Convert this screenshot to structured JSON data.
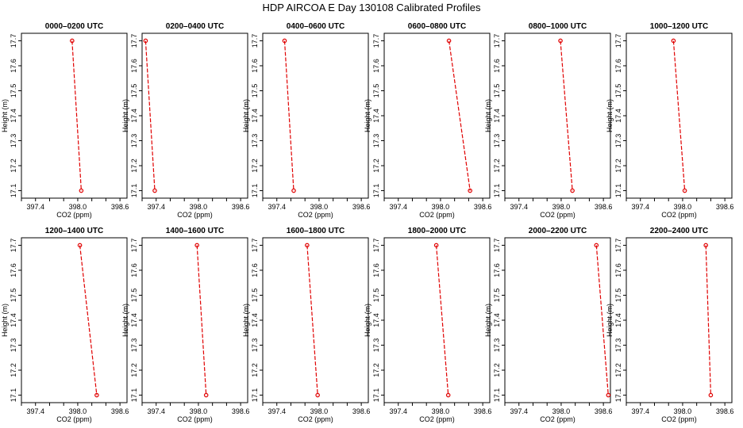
{
  "title": "HDP AIRCOA E  Day 130108  Calibrated Profiles",
  "chart_data": [
    {
      "type": "line",
      "title": "0000–0200 UTC",
      "xlabel": "CO2 (ppm)",
      "ylabel": "Height (m)",
      "xlim": [
        397.2,
        398.7
      ],
      "ylim": [
        17.07,
        17.73
      ],
      "xticks": [
        "397.4",
        "398.0",
        "398.6"
      ],
      "yticks": [
        "17.1",
        "17.2",
        "17.3",
        "17.4",
        "17.5",
        "17.6",
        "17.7"
      ],
      "x": [
        397.92,
        398.05
      ],
      "y": [
        17.7,
        17.1
      ]
    },
    {
      "type": "line",
      "title": "0200–0400 UTC",
      "xlabel": "CO2 (ppm)",
      "ylabel": "Height (m)",
      "xlim": [
        397.2,
        398.7
      ],
      "ylim": [
        17.07,
        17.73
      ],
      "xticks": [
        "397.4",
        "398.0",
        "398.6"
      ],
      "yticks": [
        "17.1",
        "17.2",
        "17.3",
        "17.4",
        "17.5",
        "17.6",
        "17.7"
      ],
      "x": [
        397.25,
        397.38
      ],
      "y": [
        17.7,
        17.1
      ]
    },
    {
      "type": "line",
      "title": "0400–0600 UTC",
      "xlabel": "CO2 (ppm)",
      "ylabel": "Height (m)",
      "xlim": [
        397.2,
        398.7
      ],
      "ylim": [
        17.07,
        17.73
      ],
      "xticks": [
        "397.4",
        "398.0",
        "398.6"
      ],
      "yticks": [
        "17.1",
        "17.2",
        "17.3",
        "17.4",
        "17.5",
        "17.6",
        "17.7"
      ],
      "x": [
        397.51,
        397.64
      ],
      "y": [
        17.7,
        17.1
      ]
    },
    {
      "type": "line",
      "title": "0600–0800 UTC",
      "xlabel": "CO2 (ppm)",
      "ylabel": "Height (m)",
      "xlim": [
        397.2,
        398.7
      ],
      "ylim": [
        17.07,
        17.73
      ],
      "xticks": [
        "397.4",
        "398.0",
        "398.6"
      ],
      "yticks": [
        "17.1",
        "17.2",
        "17.3",
        "17.4",
        "17.5",
        "17.6",
        "17.7"
      ],
      "x": [
        398.12,
        398.42
      ],
      "y": [
        17.7,
        17.1
      ]
    },
    {
      "type": "line",
      "title": "0800–1000 UTC",
      "xlabel": "CO2 (ppm)",
      "ylabel": "Height (m)",
      "xlim": [
        397.2,
        398.7
      ],
      "ylim": [
        17.07,
        17.73
      ],
      "xticks": [
        "397.4",
        "398.0",
        "398.6"
      ],
      "yticks": [
        "17.1",
        "17.2",
        "17.3",
        "17.4",
        "17.5",
        "17.6",
        "17.7"
      ],
      "x": [
        397.99,
        398.16
      ],
      "y": [
        17.7,
        17.1
      ]
    },
    {
      "type": "line",
      "title": "1000–1200 UTC",
      "xlabel": "CO2 (ppm)",
      "ylabel": "Height (m)",
      "xlim": [
        397.2,
        398.7
      ],
      "ylim": [
        17.07,
        17.73
      ],
      "xticks": [
        "397.4",
        "398.0",
        "398.6"
      ],
      "yticks": [
        "17.1",
        "17.2",
        "17.3",
        "17.4",
        "17.5",
        "17.6",
        "17.7"
      ],
      "x": [
        397.87,
        398.03
      ],
      "y": [
        17.7,
        17.1
      ]
    },
    {
      "type": "line",
      "title": "1200–1400 UTC",
      "xlabel": "CO2 (ppm)",
      "ylabel": "Height (m)",
      "xlim": [
        397.2,
        398.7
      ],
      "ylim": [
        17.07,
        17.73
      ],
      "xticks": [
        "397.4",
        "398.0",
        "398.6"
      ],
      "yticks": [
        "17.1",
        "17.2",
        "17.3",
        "17.4",
        "17.5",
        "17.6",
        "17.7"
      ],
      "x": [
        398.03,
        398.27
      ],
      "y": [
        17.7,
        17.1
      ]
    },
    {
      "type": "line",
      "title": "1400–1600 UTC",
      "xlabel": "CO2 (ppm)",
      "ylabel": "Height (m)",
      "xlim": [
        397.2,
        398.7
      ],
      "ylim": [
        17.07,
        17.73
      ],
      "xticks": [
        "397.4",
        "398.0",
        "398.6"
      ],
      "yticks": [
        "17.1",
        "17.2",
        "17.3",
        "17.4",
        "17.5",
        "17.6",
        "17.7"
      ],
      "x": [
        397.98,
        398.11
      ],
      "y": [
        17.7,
        17.1
      ]
    },
    {
      "type": "line",
      "title": "1600–1800 UTC",
      "xlabel": "CO2 (ppm)",
      "ylabel": "Height (m)",
      "xlim": [
        397.2,
        398.7
      ],
      "ylim": [
        17.07,
        17.73
      ],
      "xticks": [
        "397.4",
        "398.0",
        "398.6"
      ],
      "yticks": [
        "17.1",
        "17.2",
        "17.3",
        "17.4",
        "17.5",
        "17.6",
        "17.7"
      ],
      "x": [
        397.83,
        397.98
      ],
      "y": [
        17.7,
        17.1
      ]
    },
    {
      "type": "line",
      "title": "1800–2000 UTC",
      "xlabel": "CO2 (ppm)",
      "ylabel": "Height (m)",
      "xlim": [
        397.2,
        398.7
      ],
      "ylim": [
        17.07,
        17.73
      ],
      "xticks": [
        "397.4",
        "398.0",
        "398.6"
      ],
      "yticks": [
        "17.1",
        "17.2",
        "17.3",
        "17.4",
        "17.5",
        "17.6",
        "17.7"
      ],
      "x": [
        397.94,
        398.11
      ],
      "y": [
        17.7,
        17.1
      ]
    },
    {
      "type": "line",
      "title": "2000–2200 UTC",
      "xlabel": "CO2 (ppm)",
      "ylabel": "Height (m)",
      "xlim": [
        397.2,
        398.7
      ],
      "ylim": [
        17.07,
        17.73
      ],
      "xticks": [
        "397.4",
        "398.0",
        "398.6"
      ],
      "yticks": [
        "17.1",
        "17.2",
        "17.3",
        "17.4",
        "17.5",
        "17.6",
        "17.7"
      ],
      "x": [
        398.5,
        398.67
      ],
      "y": [
        17.7,
        17.1
      ]
    },
    {
      "type": "line",
      "title": "2200–2400 UTC",
      "xlabel": "CO2 (ppm)",
      "ylabel": "Height (m)",
      "xlim": [
        397.2,
        398.7
      ],
      "ylim": [
        17.07,
        17.73
      ],
      "xticks": [
        "397.4",
        "398.0",
        "398.6"
      ],
      "yticks": [
        "17.1",
        "17.2",
        "17.3",
        "17.4",
        "17.5",
        "17.6",
        "17.7"
      ],
      "x": [
        398.33,
        398.4
      ],
      "y": [
        17.7,
        17.1
      ]
    }
  ]
}
